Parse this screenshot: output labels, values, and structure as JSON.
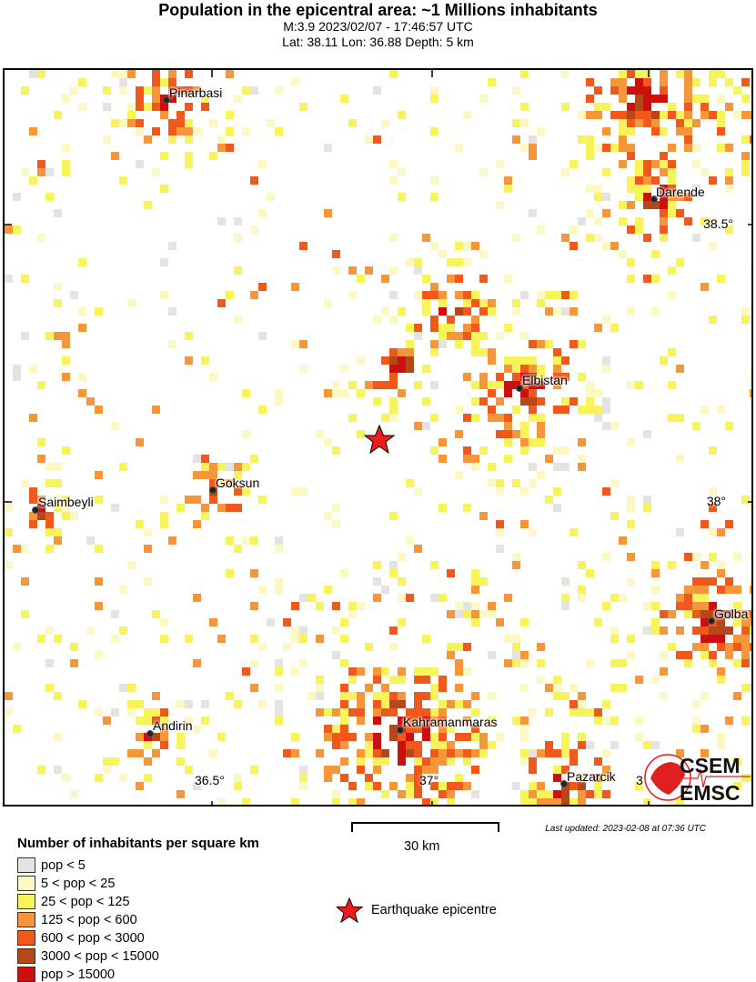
{
  "header": {
    "title": "Population in the epicentral area: ~1 Millions inhabitants",
    "magnitude_time": "M:3.9 2023/02/07 - 17:46:57 UTC",
    "location": "Lat: 38.11 Lon: 36.88 Depth: 5 km"
  },
  "map": {
    "cities": [
      {
        "name": "Pinarbasi"
      },
      {
        "name": "Darende"
      },
      {
        "name": "Elbistan"
      },
      {
        "name": "Goksun"
      },
      {
        "name": "Saimbeyli"
      },
      {
        "name": "Golba"
      },
      {
        "name": "Andirin"
      },
      {
        "name": "Kahramanmaras"
      },
      {
        "name": "Pazarcik"
      }
    ],
    "lat_labels": [
      "38.5°",
      "38°"
    ],
    "lon_labels": [
      "36.5°",
      "37°",
      "3"
    ],
    "epicentre": {
      "lat": 38.11,
      "lon": 36.88,
      "icon": "red-star-icon"
    }
  },
  "legend": {
    "title": "Number of inhabitants per square km",
    "items": [
      {
        "label": "pop < 5",
        "color": "#e3e3e1"
      },
      {
        "label": "5 < pop < 25",
        "color": "#fbf8c4"
      },
      {
        "label": "25 < pop < 125",
        "color": "#f7f35a"
      },
      {
        "label": "125 < pop < 600",
        "color": "#f6963a"
      },
      {
        "label": "600 < pop < 3000",
        "color": "#f0581c"
      },
      {
        "label": "3000 < pop < 15000",
        "color": "#b5481a"
      },
      {
        "label": "pop > 15000",
        "color": "#cc1010"
      }
    ],
    "epicentre_label": "Earthquake epicentre"
  },
  "scale_bar": {
    "label": "30 km"
  },
  "last_updated": "Last updated: 2023-02-08 at 07:36 UTC",
  "logo": {
    "top": "CSEM",
    "bottom": "EMSC",
    "color": "#e02020"
  }
}
